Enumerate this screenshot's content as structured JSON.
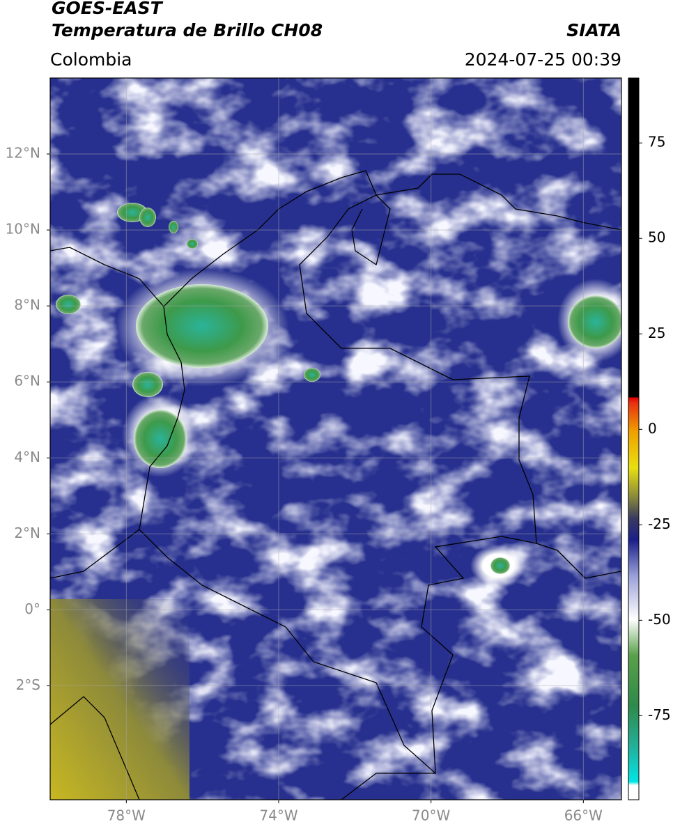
{
  "header": {
    "title_line1": "GOES-EAST",
    "title_line2": "Temperatura de Brillo CH08",
    "org": "SIATA",
    "region": "Colombia",
    "timestamp": "2024-07-25 00:39"
  },
  "map": {
    "xlim": [
      -80,
      -65
    ],
    "ylim": [
      -5,
      14
    ],
    "xticks": [
      {
        "value": -78,
        "label": "78°W"
      },
      {
        "value": -74,
        "label": "74°W"
      },
      {
        "value": -70,
        "label": "70°W"
      },
      {
        "value": -66,
        "label": "66°W"
      }
    ],
    "yticks": [
      {
        "value": 12,
        "label": "12°N"
      },
      {
        "value": 10,
        "label": "10°N"
      },
      {
        "value": 8,
        "label": "8°N"
      },
      {
        "value": 6,
        "label": "6°N"
      },
      {
        "value": 4,
        "label": "4°N"
      },
      {
        "value": 2,
        "label": "2°N"
      },
      {
        "value": 0,
        "label": "0°"
      },
      {
        "value": -2,
        "label": "2°S"
      }
    ],
    "grid": true
  },
  "colorbar": {
    "ylim": [
      -97,
      92
    ],
    "yticks": [
      75,
      50,
      25,
      0,
      -25,
      -50,
      -75
    ]
  }
}
